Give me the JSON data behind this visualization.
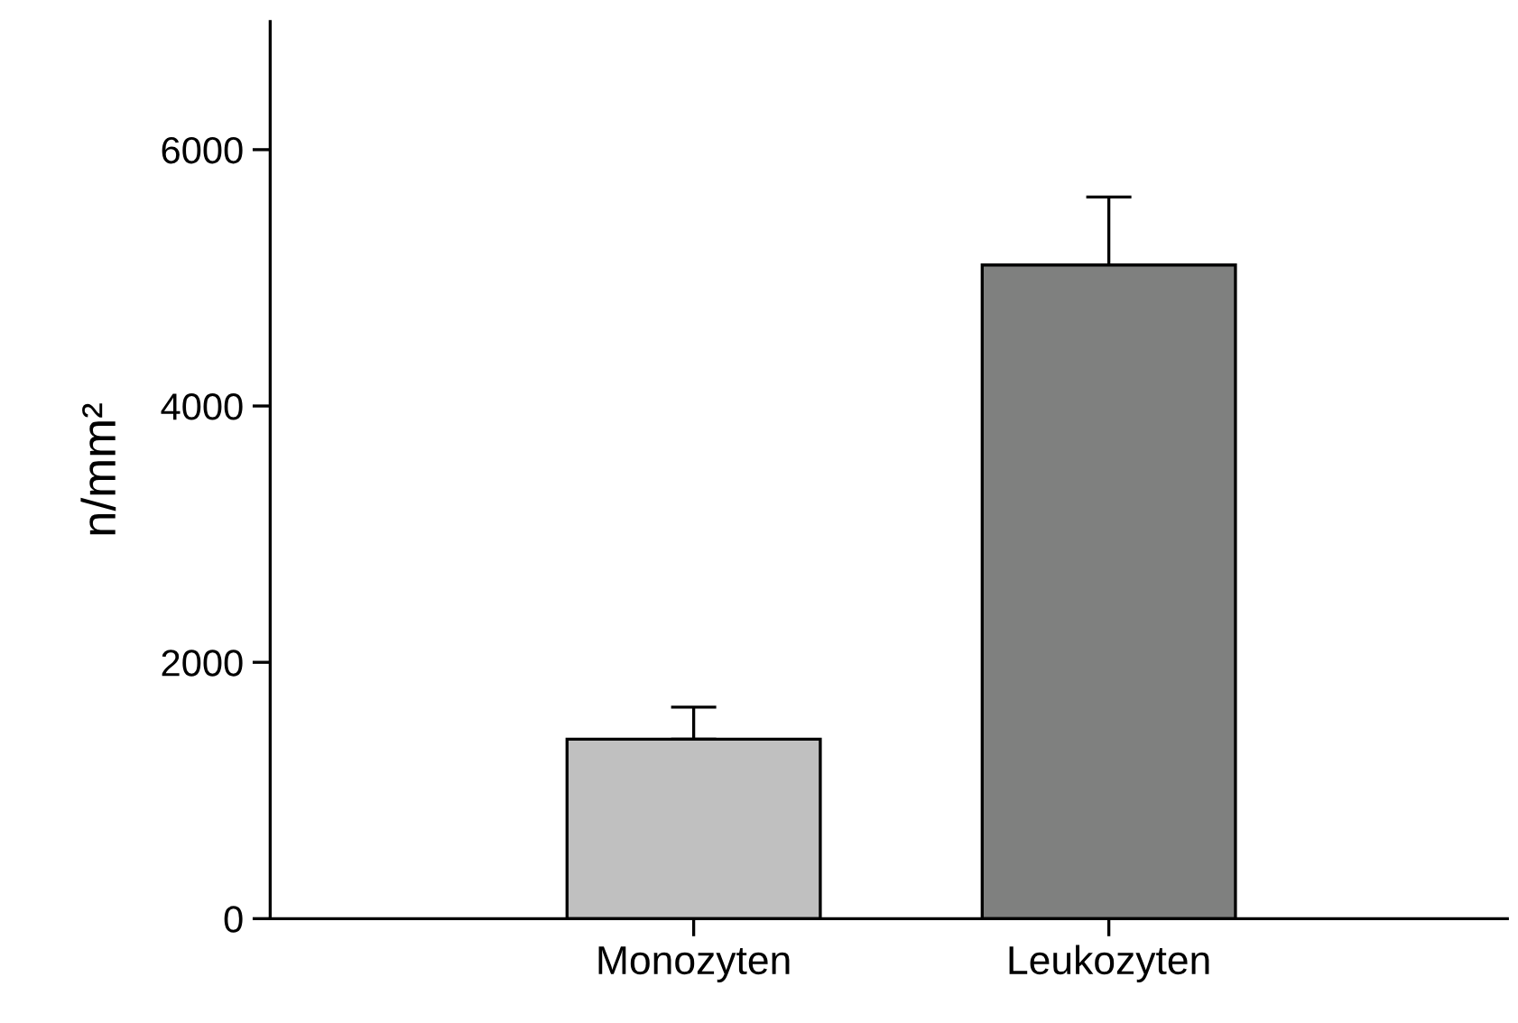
{
  "chart_data": {
    "type": "bar",
    "ylabel": "n/mm²",
    "categories": [
      "Monozyten",
      "Leukozyten"
    ],
    "values": [
      1400,
      5100
    ],
    "errors": [
      [
        1400,
        1650
      ],
      [
        5100,
        5630
      ]
    ],
    "colors": [
      "#c0c0c0",
      "#7f807f"
    ],
    "ylim": [
      0,
      7000
    ],
    "yticks": [
      0,
      2000,
      4000,
      6000
    ],
    "grid": false
  }
}
